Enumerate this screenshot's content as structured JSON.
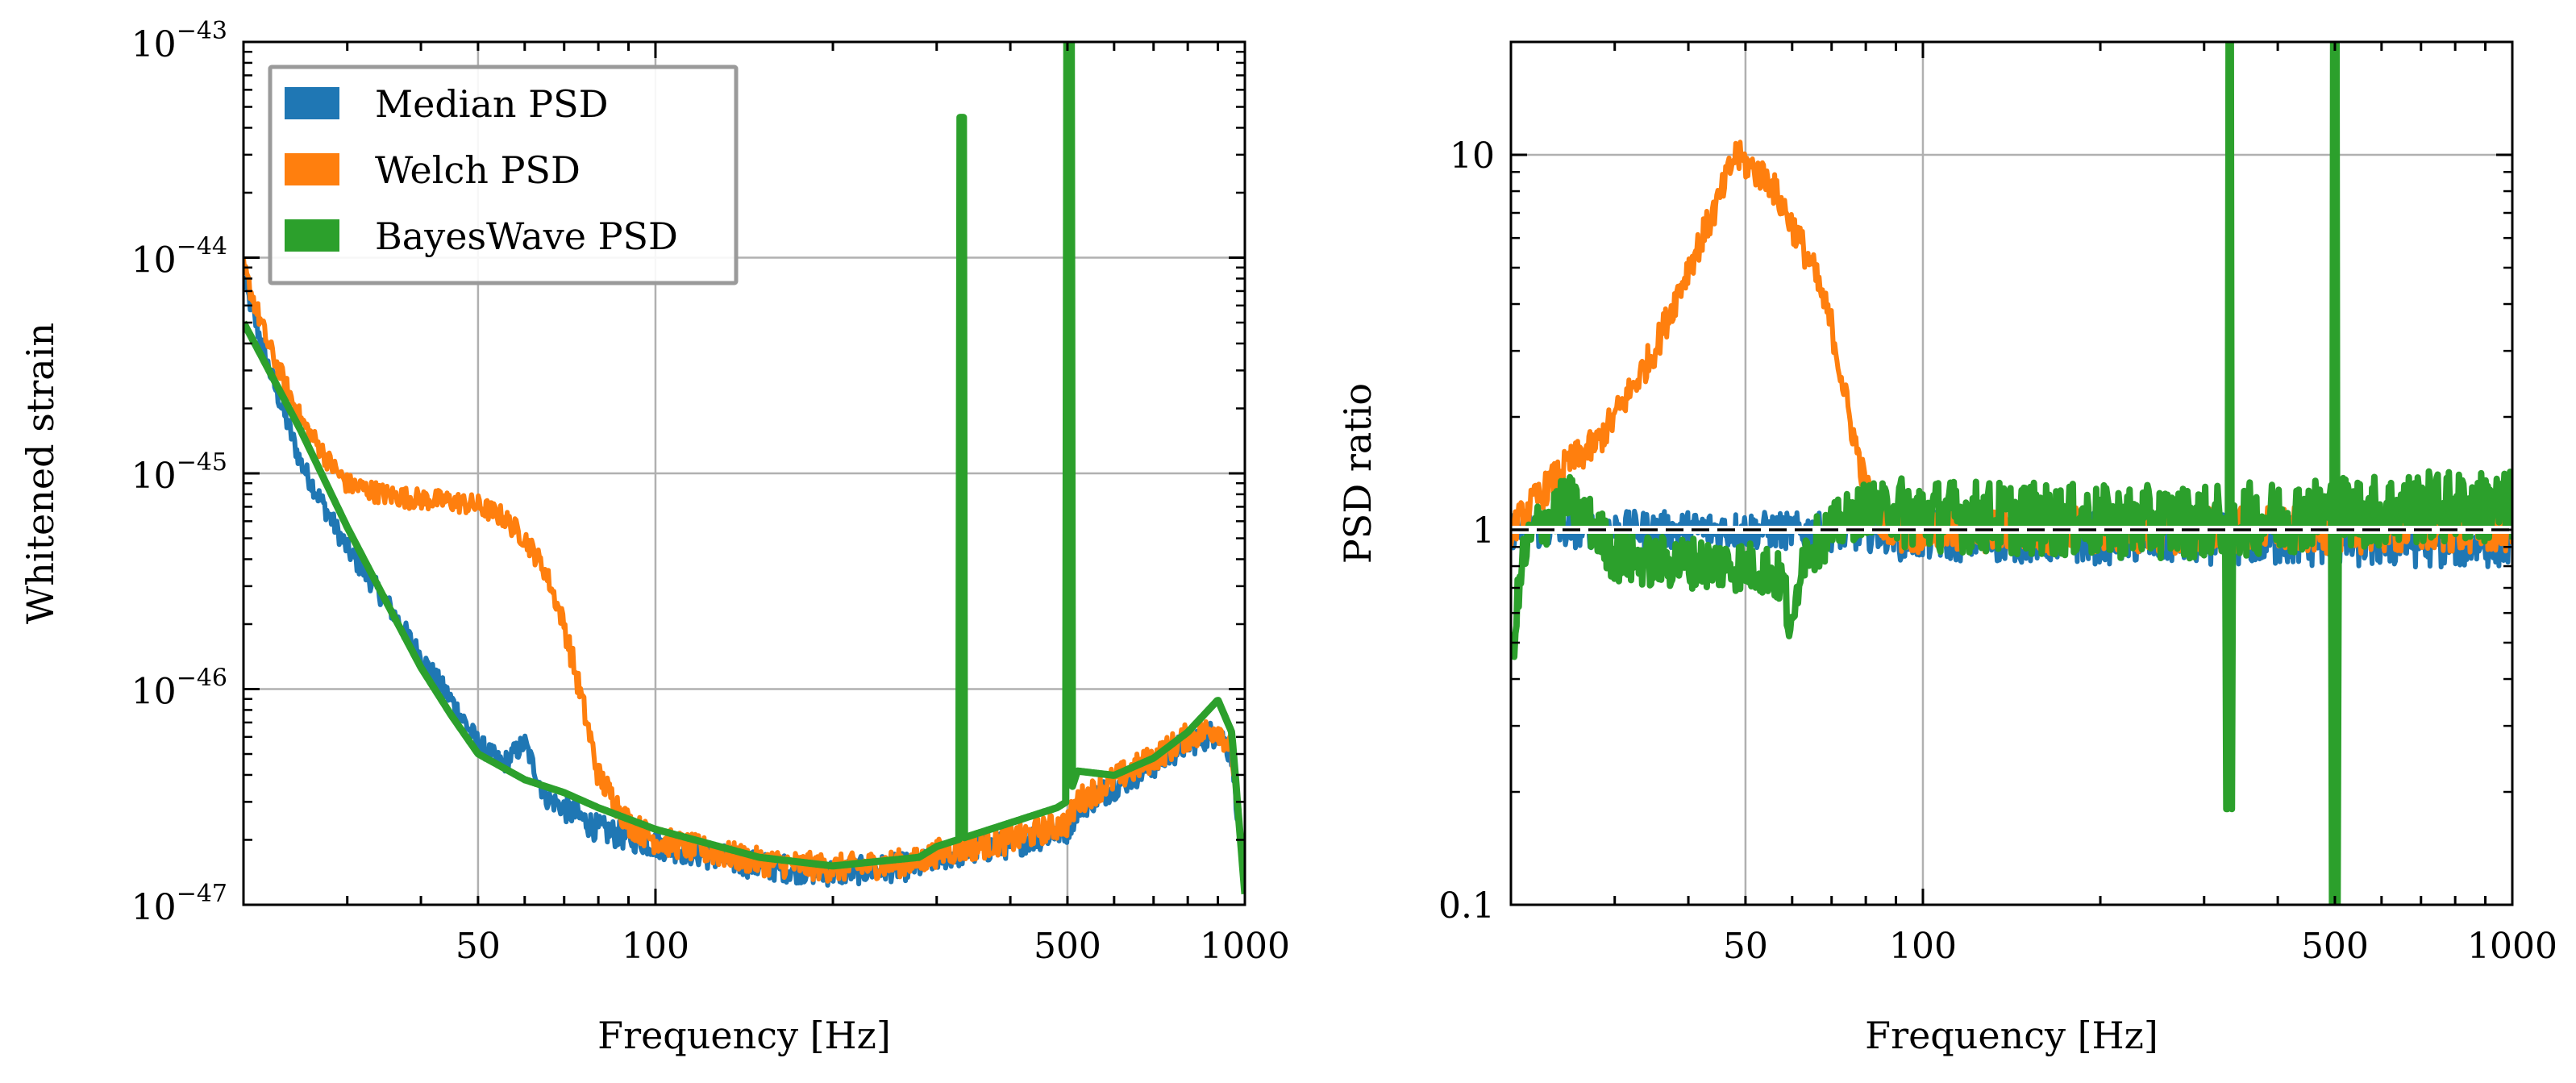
{
  "chart_data": [
    {
      "type": "line",
      "title": "",
      "xlabel": "Frequency [Hz]",
      "ylabel": "Whitened strain",
      "xscale": "log",
      "yscale": "log",
      "xlim": [
        20,
        1000
      ],
      "ylim_exponents": [
        -47,
        -43
      ],
      "x_ticks": [
        {
          "value": 50,
          "label": "50"
        },
        {
          "value": 100,
          "label": "100"
        },
        {
          "value": 500,
          "label": "500"
        },
        {
          "value": 1000,
          "label": "1000"
        }
      ],
      "y_ticks": [
        {
          "exp": -47,
          "base": "10",
          "sup": "−47"
        },
        {
          "exp": -46,
          "base": "10",
          "sup": "−46"
        },
        {
          "exp": -45,
          "base": "10",
          "sup": "−45"
        },
        {
          "exp": -44,
          "base": "10",
          "sup": "−44"
        },
        {
          "exp": -43,
          "base": "10",
          "sup": "−43"
        }
      ],
      "grid": true,
      "legend_position": "top-left",
      "series": [
        {
          "name": "Median PSD",
          "color": "#1f77b4",
          "x": [
            20,
            22,
            25,
            28,
            30,
            35,
            40,
            45,
            50,
            55,
            60,
            65,
            70,
            80,
            100,
            150,
            200,
            280,
            300,
            400,
            500,
            520,
            600,
            700,
            800,
            900,
            950,
            1000
          ],
          "log10_y": [
            -44.1,
            -44.5,
            -44.95,
            -45.2,
            -45.35,
            -45.6,
            -45.85,
            -46.05,
            -46.25,
            -46.35,
            -46.25,
            -46.5,
            -46.55,
            -46.65,
            -46.72,
            -46.82,
            -46.85,
            -46.82,
            -46.78,
            -46.72,
            -46.65,
            -46.55,
            -46.45,
            -46.35,
            -46.25,
            -46.2,
            -46.3,
            -46.9
          ],
          "noise": 0.05
        },
        {
          "name": "Welch PSD",
          "color": "#ff7f0e",
          "x": [
            20,
            22,
            25,
            28,
            30,
            35,
            40,
            45,
            50,
            55,
            60,
            65,
            70,
            75,
            80,
            90,
            100,
            150,
            200,
            280,
            300,
            400,
            500,
            520,
            600,
            700,
            800,
            900,
            950,
            1000
          ],
          "log10_y": [
            -44.05,
            -44.4,
            -44.75,
            -44.95,
            -45.05,
            -45.1,
            -45.12,
            -45.13,
            -45.15,
            -45.2,
            -45.3,
            -45.45,
            -45.7,
            -46.05,
            -46.4,
            -46.62,
            -46.7,
            -46.8,
            -46.83,
            -46.8,
            -46.76,
            -46.7,
            -46.62,
            -46.52,
            -46.42,
            -46.32,
            -46.22,
            -46.18,
            -46.28,
            -46.9
          ],
          "noise": 0.05
        },
        {
          "name": "BayesWave PSD",
          "color": "#2ca02c",
          "x": [
            20,
            25,
            30,
            35,
            40,
            45,
            50,
            60,
            70,
            80,
            100,
            150,
            200,
            280,
            300,
            400,
            480,
            500,
            520,
            600,
            700,
            800,
            900,
            950,
            1000
          ],
          "log10_y": [
            -44.3,
            -44.8,
            -45.25,
            -45.6,
            -45.9,
            -46.12,
            -46.3,
            -46.42,
            -46.48,
            -46.55,
            -46.65,
            -46.78,
            -46.82,
            -46.78,
            -46.73,
            -46.62,
            -46.55,
            -46.52,
            -46.38,
            -46.4,
            -46.32,
            -46.2,
            -46.05,
            -46.2,
            -46.95
          ],
          "spikes": [
            {
              "x": 331,
              "log10_peak": -43.35
            },
            {
              "x": 503,
              "log10_peak": -43.0
            }
          ]
        }
      ],
      "legend": [
        {
          "label": "Median PSD",
          "color": "#1f77b4"
        },
        {
          "label": "Welch PSD",
          "color": "#ff7f0e"
        },
        {
          "label": "BayesWave PSD",
          "color": "#2ca02c"
        }
      ]
    },
    {
      "type": "line",
      "title": "",
      "xlabel": "Frequency [Hz]",
      "ylabel": "PSD ratio",
      "xscale": "log",
      "yscale": "log",
      "xlim": [
        20,
        1000
      ],
      "ylim": [
        0.1,
        20
      ],
      "x_ticks": [
        {
          "value": 50,
          "label": "50"
        },
        {
          "value": 100,
          "label": "100"
        },
        {
          "value": 500,
          "label": "500"
        },
        {
          "value": 1000,
          "label": "1000"
        }
      ],
      "y_ticks": [
        {
          "value": 0.1,
          "label": "0.1"
        },
        {
          "value": 1,
          "label": "1"
        },
        {
          "value": 10,
          "label": "10"
        }
      ],
      "grid": true,
      "reference_line": 1,
      "series": [
        {
          "name": "Median PSD",
          "color": "#1f77b4",
          "x": [
            20,
            30,
            50,
            80,
            100,
            200,
            300,
            500,
            700,
            1000
          ],
          "y": [
            1.0,
            1.0,
            1.0,
            0.98,
            0.97,
            0.95,
            0.95,
            0.93,
            0.93,
            0.93
          ],
          "noise": 0.05
        },
        {
          "name": "Welch PSD",
          "color": "#ff7f0e",
          "x": [
            20,
            22,
            25,
            28,
            30,
            35,
            40,
            45,
            48,
            50,
            55,
            60,
            65,
            70,
            75,
            80,
            85,
            90,
            100,
            200,
            300,
            500,
            700,
            1000
          ],
          "y": [
            1.0,
            1.2,
            1.5,
            1.7,
            2.0,
            3.0,
            5.0,
            7.5,
            10.0,
            9.5,
            8.5,
            6.5,
            5.0,
            3.5,
            2.0,
            1.3,
            1.05,
            1.0,
            1.0,
            1.0,
            1.0,
            1.0,
            1.0,
            1.0
          ],
          "noise": 0.045
        },
        {
          "name": "BayesWave PSD",
          "color": "#2ca02c",
          "x": [
            20,
            21,
            22,
            25,
            28,
            30,
            35,
            40,
            50,
            55,
            58,
            60,
            62,
            70,
            80,
            100,
            200,
            300,
            400,
            500,
            600,
            700,
            800,
            900,
            1000
          ],
          "y": [
            0.45,
            0.85,
            1.0,
            1.2,
            1.0,
            0.85,
            0.82,
            0.82,
            0.8,
            0.78,
            0.72,
            0.5,
            0.85,
            1.0,
            1.15,
            1.1,
            1.05,
            1.05,
            1.08,
            1.12,
            1.12,
            1.15,
            1.15,
            1.15,
            1.15
          ],
          "noise": 0.07,
          "spikes": [
            {
              "x": 331,
              "y": 20,
              "min": 0.18
            },
            {
              "x": 500,
              "y": 20,
              "min": 0.1
            }
          ]
        }
      ]
    }
  ]
}
